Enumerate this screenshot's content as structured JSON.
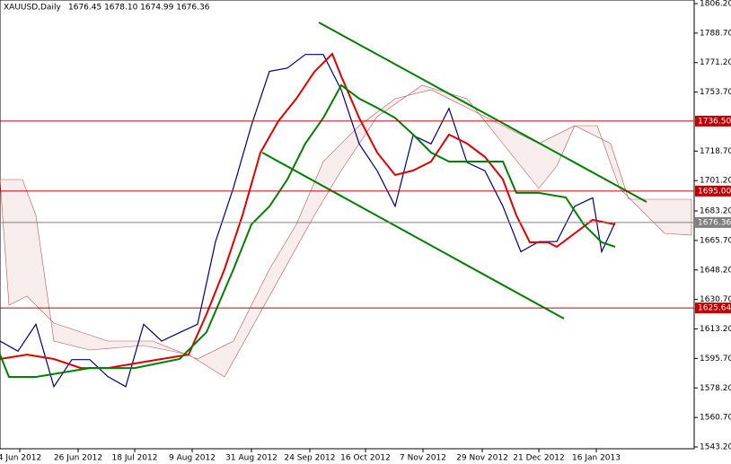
{
  "chart_data": {
    "type": "line",
    "header": {
      "symbol": "XAUUSD,Daily",
      "ohlc": "1676.45 1678.10 1674.99 1676.36"
    },
    "xlim": [
      0,
      193
    ],
    "ylim": [
      1543.2,
      1806.2
    ],
    "xticks": [
      {
        "value": 5.5,
        "label": "4 Jun 2012"
      },
      {
        "value": 21.75,
        "label": "26 Jun 2012"
      },
      {
        "value": 37.5,
        "label": "18 Jul 2012"
      },
      {
        "value": 53.5,
        "label": "9 Aug 2012"
      },
      {
        "value": 70,
        "label": "31 Aug 2012"
      },
      {
        "value": 86.25,
        "label": "24 Sep 2012"
      },
      {
        "value": 101.75,
        "label": "16 Oct 2012"
      },
      {
        "value": 117.75,
        "label": "7 Nov 2012"
      },
      {
        "value": 134.25,
        "label": "29 Nov 2012"
      },
      {
        "value": 150,
        "label": "21 Dec 2012"
      },
      {
        "value": 166,
        "label": "16 Jan 2013"
      }
    ],
    "yticks": [
      {
        "value": 1806.2,
        "label": "1806.20"
      },
      {
        "value": 1788.7,
        "label": "1788.70"
      },
      {
        "value": 1771.2,
        "label": "1771.20"
      },
      {
        "value": 1753.7,
        "label": "1753.70"
      },
      {
        "value": 1718.7,
        "label": "1718.70"
      },
      {
        "value": 1701.2,
        "label": "1701.20"
      },
      {
        "value": 1683.2,
        "label": "1683.20"
      },
      {
        "value": 1665.7,
        "label": "1665.70"
      },
      {
        "value": 1648.2,
        "label": "1648.20"
      },
      {
        "value": 1630.7,
        "label": "1630.70"
      },
      {
        "value": 1613.2,
        "label": "1613.20"
      },
      {
        "value": 1595.7,
        "label": "1595.70"
      },
      {
        "value": 1578.2,
        "label": "1578.20"
      },
      {
        "value": 1560.7,
        "label": "1560.70"
      },
      {
        "value": 1543.2,
        "label": "1543.20"
      }
    ],
    "levels": [
      {
        "value": 1736.5,
        "label": "1736.50",
        "color": "#c00000"
      },
      {
        "value": 1695,
        "label": "1695.00",
        "color": "#c00000"
      },
      {
        "value": 1676.36,
        "label": "1676.36",
        "color": "#808080"
      },
      {
        "value": 1625.64,
        "label": "1625.64",
        "color": "#c00000"
      }
    ],
    "series": [
      {
        "color": "#000080",
        "x": [
          0,
          5,
          10,
          15,
          20,
          25,
          30,
          35,
          40,
          45,
          50,
          55,
          60,
          65,
          70,
          75,
          80,
          85,
          90,
          95,
          100,
          105,
          110,
          115,
          120,
          125,
          130,
          135,
          140,
          145,
          150,
          155,
          160,
          165,
          167.5,
          171.25
        ],
        "values": [
          1606,
          1600,
          1616,
          1579,
          1595,
          1595,
          1585,
          1579,
          1616,
          1606,
          1611,
          1616,
          1665,
          1697,
          1734,
          1766,
          1768,
          1776,
          1776,
          1755,
          1723,
          1707,
          1686,
          1728,
          1723,
          1744,
          1712,
          1707,
          1686,
          1659,
          1665,
          1665,
          1686,
          1691,
          1659,
          1676.36
        ]
      },
      {
        "color": "#e00000",
        "x": [
          0,
          7.5,
          15,
          22.5,
          30,
          37.5,
          45,
          52.5,
          57.5,
          62.5,
          67.5,
          72.5,
          77.5,
          82.5,
          87.5,
          92.5,
          95,
          100,
          105,
          110,
          115,
          120,
          125,
          130,
          135,
          140,
          143.75,
          147.5,
          152.5,
          155,
          160,
          165,
          171.25
        ],
        "values": [
          1595.4,
          1598,
          1595.4,
          1590,
          1590,
          1592.7,
          1595.4,
          1598,
          1622,
          1648.6,
          1680.6,
          1717.8,
          1736.5,
          1749.8,
          1765.7,
          1776.4,
          1763.1,
          1738.4,
          1717.8,
          1704.5,
          1707.2,
          1712.5,
          1728.5,
          1723.2,
          1715.2,
          1701.9,
          1680.6,
          1664.6,
          1664.6,
          1661.9,
          1669.9,
          1677.9,
          1675.2
        ]
      },
      {
        "color": "#008000",
        "x": [
          0,
          2.5,
          10,
          25,
          37.5,
          50,
          57.5,
          65,
          70,
          75,
          80,
          85,
          90,
          95,
          100,
          105,
          110,
          115,
          120,
          125,
          132.5,
          140,
          143.75,
          150,
          157.5,
          162.5,
          167.5,
          171.25
        ],
        "values": [
          1598,
          1584.7,
          1584.7,
          1590,
          1590,
          1595.4,
          1611.3,
          1648.6,
          1675.2,
          1685.9,
          1701.9,
          1723.2,
          1738.4,
          1757.8,
          1749.8,
          1744.4,
          1738.4,
          1728.5,
          1717.8,
          1712.5,
          1712.5,
          1712.5,
          1693.9,
          1693.9,
          1691.2,
          1675.2,
          1664.6,
          1661.9
        ]
      }
    ]
  }
}
